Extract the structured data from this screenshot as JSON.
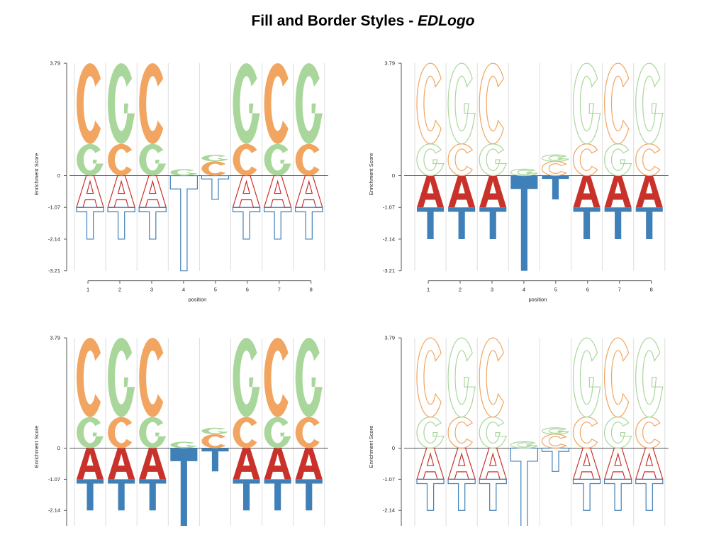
{
  "title": {
    "main": "Fill and Border Styles - ",
    "italic": "EDLogo"
  },
  "colors": {
    "A": "#c9322b",
    "C": "#f1a560",
    "G": "#a9d79b",
    "T": "#3f80b8",
    "axis": "#555555",
    "grid": "#dddddd"
  },
  "chart_data": [
    {
      "type": "sequence-logo",
      "panel": "top-left",
      "style": "filled letters on top, outlined letters below",
      "ylabel": "Enrichment Score",
      "xlabel": "position",
      "yticks": [
        3.79,
        0,
        -1.07,
        -2.14,
        -3.21
      ],
      "ylim": [
        -3.21,
        3.79
      ],
      "positions": [
        1,
        2,
        3,
        4,
        5,
        6,
        7,
        8
      ],
      "letters": [
        [
          {
            "l": "A",
            "v": -1.07
          },
          {
            "l": "T",
            "v": -1.07
          },
          {
            "l": "G",
            "v": 1.07
          },
          {
            "l": "C",
            "v": 2.72
          }
        ],
        [
          {
            "l": "A",
            "v": -1.07
          },
          {
            "l": "T",
            "v": -1.07
          },
          {
            "l": "C",
            "v": 1.07
          },
          {
            "l": "G",
            "v": 2.72
          }
        ],
        [
          {
            "l": "A",
            "v": -1.07
          },
          {
            "l": "T",
            "v": -1.07
          },
          {
            "l": "G",
            "v": 1.07
          },
          {
            "l": "C",
            "v": 2.72
          }
        ],
        [
          {
            "l": "T",
            "v": -3.21
          },
          {
            "l": "G",
            "v": 0.22
          }
        ],
        [
          {
            "l": "T",
            "v": -0.8
          },
          {
            "l": "C",
            "v": 0.48
          },
          {
            "l": "G",
            "v": 0.22
          }
        ],
        [
          {
            "l": "A",
            "v": -1.07
          },
          {
            "l": "T",
            "v": -1.07
          },
          {
            "l": "C",
            "v": 1.07
          },
          {
            "l": "G",
            "v": 2.72
          }
        ],
        [
          {
            "l": "A",
            "v": -1.07
          },
          {
            "l": "T",
            "v": -1.07
          },
          {
            "l": "G",
            "v": 1.07
          },
          {
            "l": "C",
            "v": 2.72
          }
        ],
        [
          {
            "l": "A",
            "v": -1.07
          },
          {
            "l": "T",
            "v": -1.07
          },
          {
            "l": "C",
            "v": 1.07
          },
          {
            "l": "G",
            "v": 2.72
          }
        ]
      ]
    },
    {
      "type": "sequence-logo",
      "panel": "top-right",
      "style": "outlined letters on top, filled letters below",
      "ylabel": "Enrichment Score",
      "xlabel": "position",
      "yticks": [
        3.79,
        0,
        -1.07,
        -2.14,
        -3.21
      ],
      "ylim": [
        -3.21,
        3.79
      ],
      "positions": [
        1,
        2,
        3,
        4,
        5,
        6,
        7,
        8
      ],
      "letters": "same as top-left"
    },
    {
      "type": "sequence-logo",
      "panel": "bottom-left",
      "style": "all letters filled",
      "ylabel": "Enrichment Score",
      "xlabel": "",
      "yticks": [
        3.79,
        0,
        -1.07,
        -2.14
      ],
      "ylim": [
        -3.21,
        3.79
      ],
      "letters": "same as top-left"
    },
    {
      "type": "sequence-logo",
      "panel": "bottom-right",
      "style": "all letters outlined",
      "ylabel": "Enrichment Score",
      "xlabel": "",
      "yticks": [
        3.79,
        0,
        -1.07,
        -2.14
      ],
      "ylim": [
        -3.21,
        3.79
      ],
      "letters": "same as top-left"
    }
  ]
}
